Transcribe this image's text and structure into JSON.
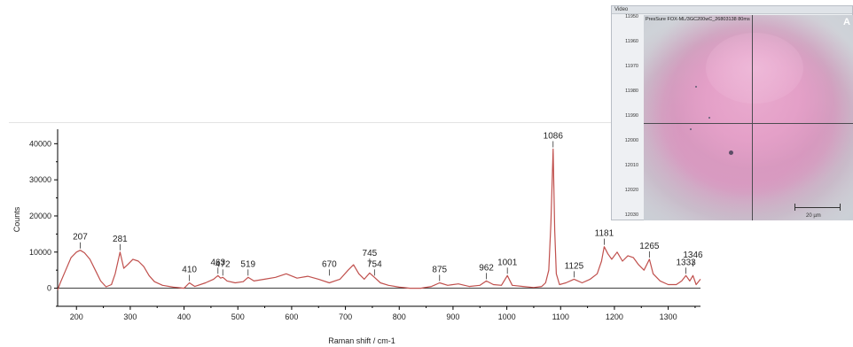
{
  "video": {
    "window_title": "Video",
    "overlay_text": "PresSure FOX-ML/3GC200wC_26803138 80ms",
    "corner_letter": "A",
    "scale_label": "20 µm",
    "y_ticks": [
      "11950",
      "11960",
      "11970",
      "11980",
      "11990",
      "12000",
      "12010",
      "12020",
      "12030"
    ]
  },
  "chart_data": {
    "type": "line",
    "xlabel": "Raman shift / cm-1",
    "ylabel": "Counts",
    "xlim": [
      165,
      1360
    ],
    "ylim": [
      -5000,
      44000
    ],
    "x_ticks": [
      200,
      300,
      400,
      500,
      600,
      700,
      800,
      900,
      1000,
      1100,
      1200,
      1300
    ],
    "y_ticks": [
      0,
      10000,
      20000,
      30000,
      40000
    ],
    "y_tick_labels": [
      "0",
      "10000",
      "20000",
      "30000",
      "40000"
    ],
    "grid": false,
    "line_color": "#c0504d",
    "series": [
      {
        "x": [
          165,
          170,
          180,
          190,
          200,
          207,
          215,
          225,
          235,
          245,
          255,
          265,
          272,
          281,
          288,
          295,
          305,
          315,
          325,
          335,
          345,
          360,
          380,
          400,
          410,
          420,
          440,
          455,
          463,
          468,
          472,
          480,
          495,
          510,
          519,
          530,
          550,
          570,
          590,
          610,
          630,
          650,
          670,
          690,
          705,
          715,
          725,
          735,
          745,
          754,
          765,
          780,
          800,
          820,
          840,
          860,
          875,
          890,
          910,
          930,
          950,
          962,
          975,
          990,
          1001,
          1010,
          1030,
          1050,
          1065,
          1072,
          1078,
          1082,
          1086,
          1089,
          1092,
          1098,
          1110,
          1125,
          1140,
          1155,
          1168,
          1176,
          1181,
          1188,
          1195,
          1205,
          1215,
          1225,
          1235,
          1245,
          1255,
          1265,
          1272,
          1285,
          1300,
          1315,
          1325,
          1333,
          1340,
          1346,
          1352,
          1360
        ],
        "y": [
          -500,
          1500,
          5000,
          8500,
          10000,
          10500,
          9800,
          8000,
          5000,
          2000,
          400,
          1000,
          4000,
          10000,
          5500,
          6500,
          8000,
          7500,
          6000,
          3500,
          1800,
          800,
          300,
          0,
          1500,
          500,
          1500,
          2500,
          3500,
          2800,
          3000,
          2000,
          1500,
          1800,
          3000,
          2000,
          2500,
          3000,
          4000,
          2800,
          3300,
          2500,
          1500,
          2500,
          5000,
          6500,
          4000,
          2500,
          4200,
          3000,
          1500,
          800,
          300,
          0,
          0,
          500,
          1500,
          800,
          1200,
          500,
          800,
          2000,
          1000,
          800,
          3500,
          800,
          500,
          200,
          500,
          1500,
          5000,
          18000,
          38500,
          16000,
          4000,
          1000,
          1500,
          2500,
          1500,
          2500,
          4000,
          7500,
          11500,
          9500,
          8000,
          10000,
          7500,
          9000,
          8500,
          6500,
          5000,
          8000,
          4000,
          2000,
          1000,
          1000,
          2000,
          3500,
          2000,
          3500,
          1000,
          2500
        ]
      }
    ],
    "peak_labels": [
      {
        "text": "207",
        "x": 207,
        "y": 10500
      },
      {
        "text": "281",
        "x": 281,
        "y": 10000
      },
      {
        "text": "410",
        "x": 410,
        "y": 1500
      },
      {
        "text": "463",
        "x": 463,
        "y": 3500
      },
      {
        "text": "472",
        "x": 472,
        "y": 3000
      },
      {
        "text": "519",
        "x": 519,
        "y": 3000
      },
      {
        "text": "670",
        "x": 670,
        "y": 3000
      },
      {
        "text": "745",
        "x": 745,
        "y": 6000
      },
      {
        "text": "754",
        "x": 754,
        "y": 3000
      },
      {
        "text": "875",
        "x": 875,
        "y": 1500
      },
      {
        "text": "962",
        "x": 962,
        "y": 2000
      },
      {
        "text": "1001",
        "x": 1001,
        "y": 3500
      },
      {
        "text": "1086",
        "x": 1086,
        "y": 38500
      },
      {
        "text": "1125",
        "x": 1125,
        "y": 2500
      },
      {
        "text": "1181",
        "x": 1181,
        "y": 11500
      },
      {
        "text": "1265",
        "x": 1265,
        "y": 8000
      },
      {
        "text": "1333",
        "x": 1333,
        "y": 3500
      },
      {
        "text": "1346",
        "x": 1346,
        "y": 5500
      }
    ]
  }
}
